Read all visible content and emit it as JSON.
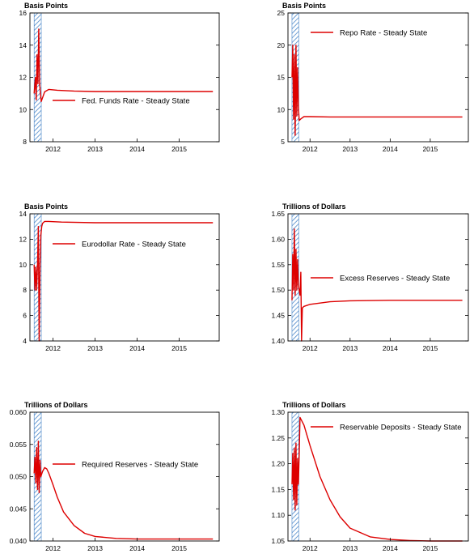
{
  "colors": {
    "series": "#dd0000",
    "axes": "#000000",
    "shade": "#4a86c8"
  },
  "chart_data": [
    {
      "type": "line",
      "unit_label": "Basis Points",
      "legend": "Fed. Funds Rate - Steady State",
      "legend_placement": "middle-right",
      "ylim": [
        8,
        16
      ],
      "yticks": [
        8,
        10,
        12,
        14,
        16
      ],
      "ytick_labels": [
        "8",
        "10",
        "12",
        "14",
        "16"
      ],
      "xlim": [
        2011.45,
        2015.95
      ],
      "xticks": [
        2012,
        2013,
        2014,
        2015
      ],
      "xtick_labels": [
        "2012",
        "2013",
        "2014",
        "2015"
      ],
      "shaded_region": [
        2011.55,
        2011.72
      ],
      "grid": false,
      "series": [
        {
          "x": [
            2011.55,
            2011.58,
            2011.6,
            2011.62,
            2011.64,
            2011.66,
            2011.68,
            2011.7,
            2011.72,
            2011.76,
            2011.8,
            2011.9,
            2012.1,
            2012.5,
            2013,
            2014,
            2015,
            2015.8
          ],
          "y": [
            11.0,
            12.0,
            10.6,
            13.4,
            11.6,
            15.0,
            11.6,
            11.0,
            10.5,
            10.8,
            11.1,
            11.25,
            11.2,
            11.15,
            11.12,
            11.12,
            11.12,
            11.12
          ]
        }
      ]
    },
    {
      "type": "line",
      "unit_label": "Basis Points",
      "legend": "Repo Rate - Steady State",
      "legend_placement": "top-right",
      "ylim": [
        5,
        25
      ],
      "yticks": [
        5,
        10,
        15,
        20,
        25
      ],
      "ytick_labels": [
        "5",
        "10",
        "15",
        "20",
        "25"
      ],
      "xlim": [
        2011.45,
        2015.95
      ],
      "xticks": [
        2012,
        2013,
        2014,
        2015
      ],
      "xtick_labels": [
        "2012",
        "2013",
        "2014",
        "2015"
      ],
      "shaded_region": [
        2011.55,
        2011.72
      ],
      "grid": false,
      "series": [
        {
          "x": [
            2011.55,
            2011.57,
            2011.59,
            2011.61,
            2011.63,
            2011.65,
            2011.67,
            2011.69,
            2011.71,
            2011.73,
            2011.78,
            2011.85,
            2012.0,
            2012.5,
            2013,
            2014,
            2015,
            2015.8
          ],
          "y": [
            15.0,
            20.0,
            8.5,
            18.5,
            6.0,
            20.0,
            9.0,
            16.5,
            10.5,
            8.3,
            8.6,
            8.9,
            8.9,
            8.85,
            8.85,
            8.85,
            8.85,
            8.85
          ]
        }
      ]
    },
    {
      "type": "line",
      "unit_label": "Basis Points",
      "legend": "Eurodollar Rate - Steady State",
      "legend_placement": "middle-right",
      "ylim": [
        4,
        14
      ],
      "yticks": [
        4,
        6,
        8,
        10,
        12,
        14
      ],
      "ytick_labels": [
        "4",
        "6",
        "8",
        "10",
        "12",
        "14"
      ],
      "xlim": [
        2011.45,
        2015.95
      ],
      "xticks": [
        2012,
        2013,
        2014,
        2015
      ],
      "xtick_labels": [
        "2012",
        "2013",
        "2014",
        "2015"
      ],
      "shaded_region": [
        2011.55,
        2011.72
      ],
      "grid": false,
      "series": [
        {
          "x": [
            2011.55,
            2011.57,
            2011.59,
            2011.61,
            2011.63,
            2011.65,
            2011.67,
            2011.69,
            2011.71,
            2011.73,
            2011.75,
            2011.8,
            2011.9,
            2012.2,
            2013,
            2014,
            2015,
            2015.8
          ],
          "y": [
            10.0,
            8.0,
            9.8,
            8.0,
            10.0,
            13.0,
            4.0,
            10.0,
            12.3,
            13.0,
            13.25,
            13.4,
            13.4,
            13.35,
            13.3,
            13.3,
            13.3,
            13.3
          ]
        }
      ]
    },
    {
      "type": "line",
      "unit_label": "Trillions of Dollars",
      "legend": "Excess Reserves - Steady State",
      "legend_placement": "middle-right",
      "ylim": [
        1.4,
        1.65
      ],
      "yticks": [
        1.4,
        1.45,
        1.5,
        1.55,
        1.6,
        1.65
      ],
      "ytick_labels": [
        "1.40",
        "1.45",
        "1.50",
        "1.55",
        "1.60",
        "1.65"
      ],
      "xlim": [
        2011.45,
        2015.95
      ],
      "xticks": [
        2012,
        2013,
        2014,
        2015
      ],
      "xtick_labels": [
        "2012",
        "2013",
        "2014",
        "2015"
      ],
      "shaded_region": [
        2011.55,
        2011.72
      ],
      "grid": false,
      "series": [
        {
          "x": [
            2011.55,
            2011.57,
            2011.59,
            2011.61,
            2011.63,
            2011.65,
            2011.67,
            2011.69,
            2011.71,
            2011.73,
            2011.75,
            2011.77,
            2011.79,
            2011.81,
            2011.85,
            2012.0,
            2012.5,
            2013,
            2014,
            2015,
            2015.8
          ],
          "y": [
            1.48,
            1.57,
            1.5,
            1.62,
            1.49,
            1.58,
            1.5,
            1.56,
            1.51,
            1.5,
            1.49,
            1.535,
            1.4,
            1.465,
            1.468,
            1.472,
            1.477,
            1.479,
            1.48,
            1.48,
            1.48
          ]
        }
      ]
    },
    {
      "type": "line",
      "unit_label": "Trillions of Dollars",
      "legend": "Required Reserves - Steady State",
      "legend_placement": "middle-right",
      "ylim": [
        0.04,
        0.06
      ],
      "yticks": [
        0.04,
        0.045,
        0.05,
        0.055,
        0.06
      ],
      "ytick_labels": [
        "0.040",
        "0.045",
        "0.050",
        "0.055",
        "0.060"
      ],
      "xlim": [
        2011.45,
        2015.95
      ],
      "xticks": [
        2012,
        2013,
        2014,
        2015
      ],
      "xtick_labels": [
        "2012",
        "2013",
        "2014",
        "2015"
      ],
      "shaded_region": [
        2011.55,
        2011.72
      ],
      "grid": false,
      "series": [
        {
          "x": [
            2011.55,
            2011.57,
            2011.59,
            2011.61,
            2011.63,
            2011.65,
            2011.67,
            2011.69,
            2011.71,
            2011.75,
            2011.8,
            2011.85,
            2011.9,
            2012.0,
            2012.1,
            2012.25,
            2012.5,
            2012.75,
            2013.0,
            2013.5,
            2014.0,
            2014.5,
            2015.0,
            2015.8
          ],
          "y": [
            0.0505,
            0.053,
            0.049,
            0.0545,
            0.048,
            0.0555,
            0.0475,
            0.0525,
            0.05,
            0.0508,
            0.0514,
            0.0512,
            0.0505,
            0.0487,
            0.0468,
            0.0445,
            0.0424,
            0.0412,
            0.0407,
            0.0404,
            0.0403,
            0.0403,
            0.0403,
            0.0403
          ]
        }
      ]
    },
    {
      "type": "line",
      "unit_label": "Trillions of Dollars",
      "legend": "Reservable Deposits - Steady State",
      "legend_placement": "top-right",
      "ylim": [
        1.05,
        1.3
      ],
      "yticks": [
        1.05,
        1.1,
        1.15,
        1.2,
        1.25,
        1.3
      ],
      "ytick_labels": [
        "1.05",
        "1.10",
        "1.15",
        "1.20",
        "1.25",
        "1.30"
      ],
      "xlim": [
        2011.45,
        2015.95
      ],
      "xticks": [
        2012,
        2013,
        2014,
        2015
      ],
      "xtick_labels": [
        "2012",
        "2013",
        "2014",
        "2015"
      ],
      "shaded_region": [
        2011.55,
        2011.72
      ],
      "grid": false,
      "series": [
        {
          "x": [
            2011.55,
            2011.57,
            2011.59,
            2011.61,
            2011.63,
            2011.65,
            2011.67,
            2011.69,
            2011.71,
            2011.73,
            2011.75,
            2011.85,
            2012.0,
            2012.25,
            2012.5,
            2012.75,
            2013.0,
            2013.5,
            2014.0,
            2014.5,
            2015.0,
            2015.8
          ],
          "y": [
            1.16,
            1.22,
            1.13,
            1.23,
            1.11,
            1.24,
            1.12,
            1.21,
            1.16,
            1.22,
            1.29,
            1.275,
            1.235,
            1.175,
            1.13,
            1.097,
            1.075,
            1.058,
            1.053,
            1.051,
            1.05,
            1.05
          ]
        }
      ]
    }
  ]
}
